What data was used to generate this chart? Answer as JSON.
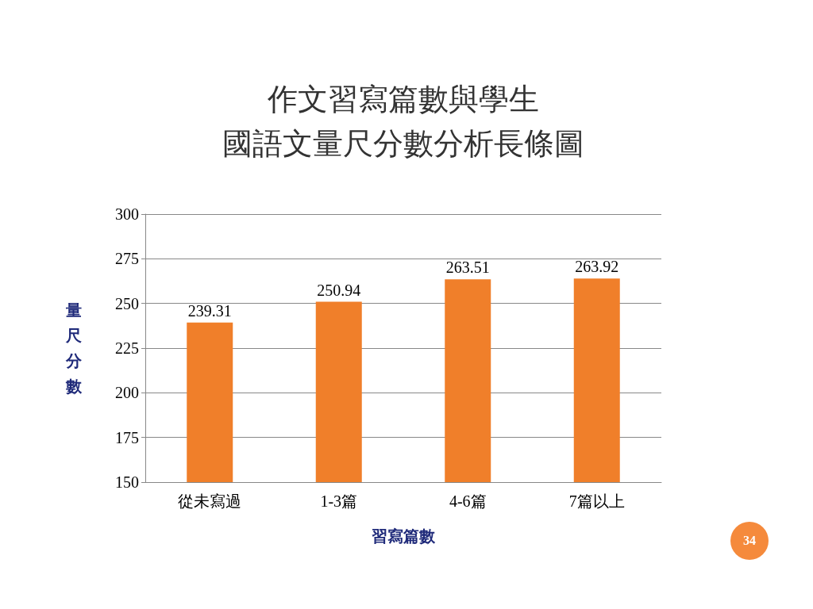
{
  "chart_data": {
    "type": "bar",
    "title": "作文習寫篇數與學生",
    "subtitle": "國語文量尺分數分析長條圖",
    "xlabel": "習寫篇數",
    "ylabel": "量尺分數",
    "categories": [
      "從未寫過",
      "1-3篇",
      "4-6篇",
      "7篇以上"
    ],
    "values": [
      239.31,
      250.94,
      263.51,
      263.92
    ],
    "color": "#f07f2a",
    "ylim": [
      150,
      300
    ],
    "yticks": [
      150,
      175,
      200,
      225,
      250,
      275,
      300
    ],
    "grid": "y",
    "data_labels": true,
    "annotations": [
      "34"
    ]
  }
}
